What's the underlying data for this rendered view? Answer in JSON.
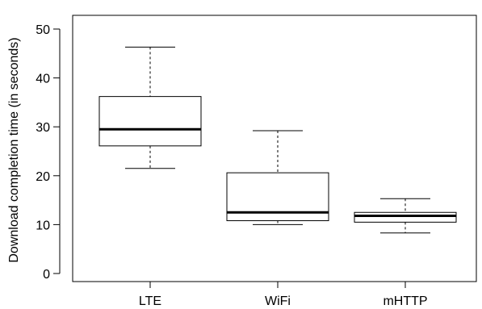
{
  "chart_data": {
    "type": "box",
    "title": "",
    "xlabel": "",
    "ylabel": "Download completion time (in seconds)",
    "ylim": [
      -2,
      52
    ],
    "yticks": [
      0,
      10,
      20,
      30,
      40,
      50
    ],
    "ytick_labels": [
      "0",
      "10",
      "20",
      "30",
      "40",
      "50"
    ],
    "categories": [
      "LTE",
      "WiFi",
      "mHTTP"
    ],
    "boxes": [
      {
        "category": "LTE",
        "min": 21.5,
        "q1": 26.1,
        "median": 29.5,
        "q3": 36.2,
        "max": 46.3
      },
      {
        "category": "WiFi",
        "min": 10.0,
        "q1": 10.8,
        "median": 12.5,
        "q3": 20.6,
        "max": 29.2
      },
      {
        "category": "mHTTP",
        "min": 8.3,
        "q1": 10.5,
        "median": 11.8,
        "q3": 12.5,
        "max": 15.3
      }
    ],
    "grid": false,
    "legend": "none"
  }
}
